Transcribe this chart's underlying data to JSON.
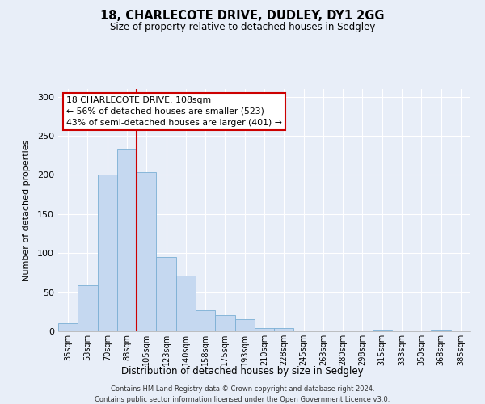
{
  "title": "18, CHARLECOTE DRIVE, DUDLEY, DY1 2GG",
  "subtitle": "Size of property relative to detached houses in Sedgley",
  "xlabel": "Distribution of detached houses by size in Sedgley",
  "ylabel": "Number of detached properties",
  "bar_labels": [
    "35sqm",
    "53sqm",
    "70sqm",
    "88sqm",
    "105sqm",
    "123sqm",
    "140sqm",
    "158sqm",
    "175sqm",
    "193sqm",
    "210sqm",
    "228sqm",
    "245sqm",
    "263sqm",
    "280sqm",
    "298sqm",
    "315sqm",
    "333sqm",
    "350sqm",
    "368sqm",
    "385sqm"
  ],
  "bar_values": [
    10,
    59,
    200,
    233,
    204,
    95,
    71,
    27,
    21,
    15,
    4,
    4,
    0,
    0,
    0,
    0,
    1,
    0,
    0,
    1,
    0
  ],
  "bar_color": "#c5d8f0",
  "bar_edge_color": "#7bafd4",
  "vline_x_index": 4,
  "vline_color": "#cc0000",
  "ylim": [
    0,
    310
  ],
  "yticks": [
    0,
    50,
    100,
    150,
    200,
    250,
    300
  ],
  "annotation_lines": [
    "18 CHARLECOTE DRIVE: 108sqm",
    "← 56% of detached houses are smaller (523)",
    "43% of semi-detached houses are larger (401) →"
  ],
  "footer_line1": "Contains HM Land Registry data © Crown copyright and database right 2024.",
  "footer_line2": "Contains public sector information licensed under the Open Government Licence v3.0.",
  "background_color": "#e8eef8",
  "plot_bg_color": "#e8eef8",
  "grid_color": "#ffffff"
}
